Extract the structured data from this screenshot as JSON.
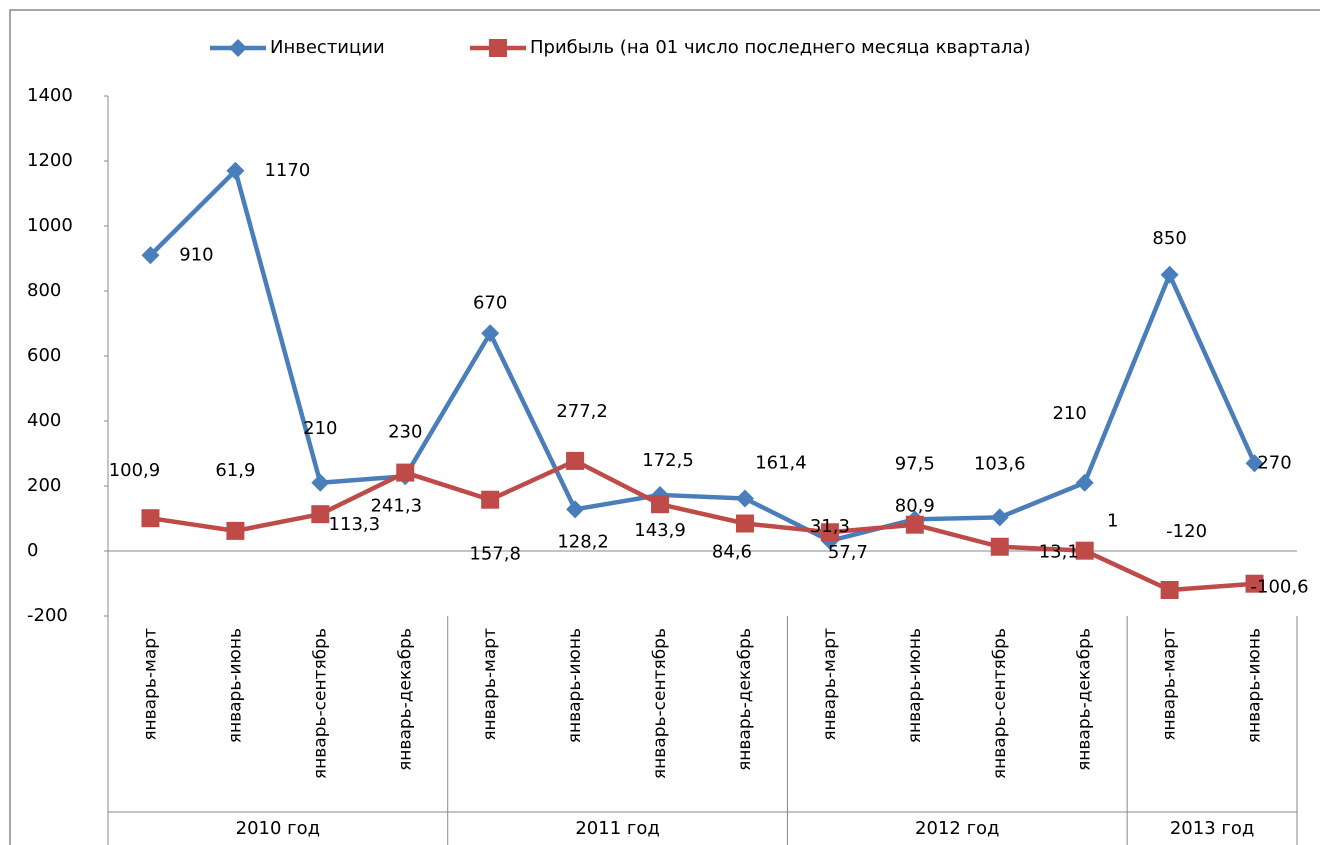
{
  "chart_data": {
    "type": "line",
    "category_groups": [
      {
        "label": "2010 год",
        "categories": [
          "январь-март",
          "январь-июнь",
          "январь-сентябрь",
          "январь-декабрь"
        ]
      },
      {
        "label": "2011 год",
        "categories": [
          "январь-март",
          "январь-июнь",
          "январь-сентябрь",
          "январь-декабрь"
        ]
      },
      {
        "label": "2012 год",
        "categories": [
          "январь-март",
          "январь-июнь",
          "январь-сентябрь",
          "январь-декабрь"
        ]
      },
      {
        "label": "2013 год",
        "categories": [
          "январь-март",
          "январь-июнь"
        ]
      }
    ],
    "series": [
      {
        "name": "Инвестиции",
        "color": "#4a7ebb",
        "marker": "diamond",
        "values": [
          910,
          1170,
          210,
          230,
          670,
          128.2,
          172.5,
          161.4,
          31.3,
          97.5,
          103.6,
          210,
          850,
          270
        ],
        "value_labels": [
          "910",
          "1170",
          "210",
          "230",
          "670",
          "128,2",
          "172,5",
          "161,4",
          "31,3",
          "97,5",
          "103,6",
          "210",
          "850",
          "270"
        ]
      },
      {
        "name": "Прибыль (на 01 число последнего месяца квартала)",
        "color": "#be4b48",
        "marker": "square",
        "values": [
          100.9,
          61.9,
          113.3,
          241.3,
          157.8,
          277.2,
          143.9,
          84.6,
          57.7,
          80.9,
          13.1,
          1,
          -120,
          -100.6
        ],
        "value_labels": [
          "100,9",
          "61,9",
          "113,3",
          "241,3",
          "157,8",
          "277,2",
          "143,9",
          "84,6",
          "57,7",
          "80,9",
          "13,1",
          "1",
          "-120",
          "-100,6"
        ]
      }
    ],
    "ylim": [
      -200,
      1400
    ],
    "yticks": [
      -200,
      0,
      200,
      400,
      600,
      800,
      1000,
      1200,
      1400
    ],
    "legend": "top"
  }
}
